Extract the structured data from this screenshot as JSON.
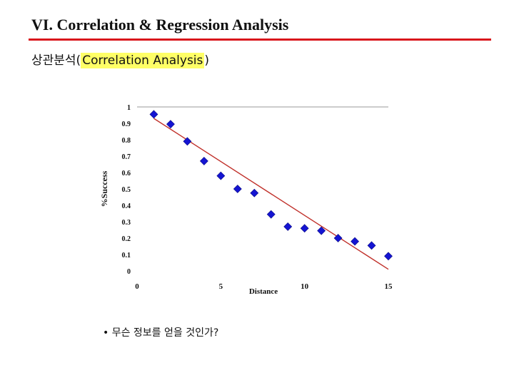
{
  "slide": {
    "title": "VI. Correlation & Regression Analysis",
    "subtitle_pre": "상관분석(",
    "subtitle_highlight": "Correlation Analysis",
    "subtitle_post": ")",
    "bullet": "• 무슨 정보를 얻을 것인가?"
  },
  "colors": {
    "rule": "#d9161c",
    "points": "#1414d2",
    "trendline": "#c0302a",
    "highlight": "#ffff66"
  },
  "chart_data": {
    "type": "scatter",
    "title": "",
    "xlabel": "Distance",
    "ylabel": "%Success",
    "xlim": [
      0,
      15
    ],
    "ylim": [
      0,
      1
    ],
    "x_ticks": [
      "0",
      "5",
      "10",
      "15"
    ],
    "y_ticks": [
      "0",
      "0.1",
      "0.2",
      "0.3",
      "0.4",
      "0.5",
      "0.6",
      "0.7",
      "0.8",
      "0.9",
      "1"
    ],
    "series": [
      {
        "name": "%Success",
        "x": [
          1,
          2,
          3,
          4,
          5,
          6,
          7,
          8,
          9,
          10,
          11,
          12,
          13,
          14,
          15
        ],
        "y": [
          0.955,
          0.895,
          0.79,
          0.67,
          0.58,
          0.5,
          0.475,
          0.345,
          0.27,
          0.26,
          0.245,
          0.2,
          0.18,
          0.155,
          0.09
        ]
      }
    ],
    "trendline": {
      "x": [
        1,
        15
      ],
      "y": [
        0.93,
        0.01
      ]
    },
    "gridlines": "horizontal at 1"
  }
}
